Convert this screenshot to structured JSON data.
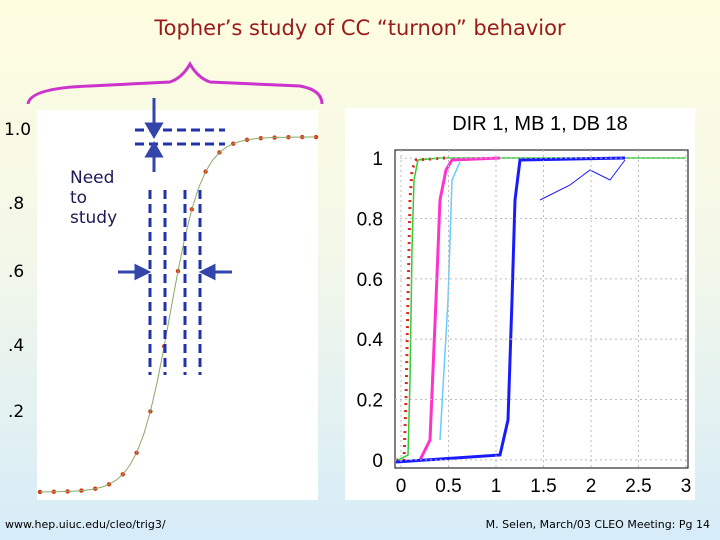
{
  "title": "Topher’s study of CC “turnon” behavior",
  "left_plot": {
    "y_labels": [
      "1.0",
      ".8",
      ".6",
      ".4",
      ".2"
    ],
    "annotation": "Need to study"
  },
  "right_plot": {
    "title": "DIR 1, MB  1, DB 18",
    "xlim": [
      0,
      3
    ],
    "ylim": [
      -0.05,
      1.05
    ],
    "xticks": [
      0,
      0.5,
      1,
      1.5,
      2,
      2.5,
      3
    ],
    "yticks": [
      0,
      0.2,
      0.4,
      0.6,
      0.8,
      1
    ]
  },
  "footer": {
    "url": "www.hep.uiuc.edu/cleo/trig3/",
    "credit": "M. Selen, March/03 CLEO Meeting: Pg 14"
  }
}
